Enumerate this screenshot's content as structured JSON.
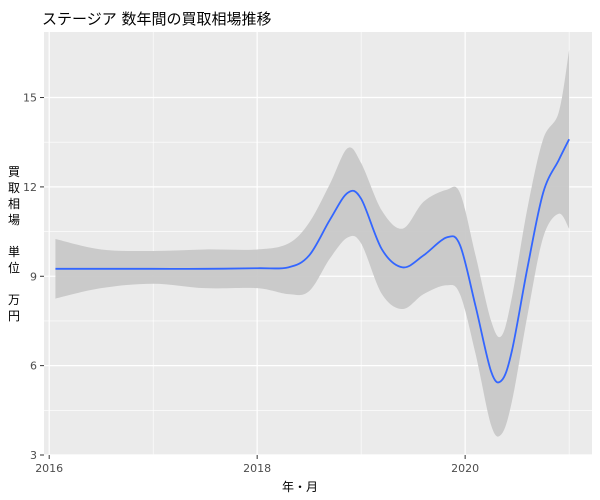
{
  "chart_data": {
    "type": "line",
    "title": "ステージア 数年間の買取相場推移",
    "xlabel": "年・月",
    "ylabel": "買\n取\n相\n場\n\n単\n位\n\n万\n円",
    "xlim": [
      2015.95,
      2021.22
    ],
    "ylim": [
      3.0,
      17.2
    ],
    "x_ticks": [
      2016,
      2018,
      2020
    ],
    "y_ticks": [
      3,
      6,
      9,
      12,
      15
    ],
    "grid": true,
    "background": "#ebebeb",
    "series": [
      {
        "type": "smooth",
        "color": "#3366ff",
        "band_color": "#c8c8c8",
        "x": [
          2016.06,
          2016.5,
          2017.0,
          2017.5,
          2018.0,
          2018.3,
          2018.5,
          2018.7,
          2018.87,
          2019.0,
          2019.2,
          2019.4,
          2019.6,
          2019.82,
          2019.95,
          2020.1,
          2020.25,
          2020.35,
          2020.45,
          2020.6,
          2020.75,
          2020.9,
          2021.0
        ],
        "y": [
          9.25,
          9.25,
          9.25,
          9.25,
          9.27,
          9.3,
          9.7,
          10.9,
          11.8,
          11.6,
          9.9,
          9.3,
          9.7,
          10.3,
          10.05,
          8.0,
          5.8,
          5.5,
          6.5,
          9.3,
          11.8,
          12.9,
          13.6
        ],
        "upper": [
          10.25,
          9.9,
          9.85,
          9.9,
          9.9,
          10.1,
          10.8,
          12.1,
          13.3,
          12.8,
          11.2,
          10.6,
          11.5,
          11.9,
          11.8,
          9.7,
          7.5,
          7.0,
          8.3,
          11.3,
          13.6,
          14.5,
          16.6
        ],
        "lower": [
          8.25,
          8.6,
          8.75,
          8.6,
          8.6,
          8.4,
          8.5,
          9.6,
          10.3,
          10.1,
          8.4,
          7.9,
          8.4,
          8.7,
          8.4,
          6.4,
          4.0,
          3.7,
          4.8,
          7.7,
          10.3,
          11.1,
          10.6
        ]
      }
    ]
  }
}
